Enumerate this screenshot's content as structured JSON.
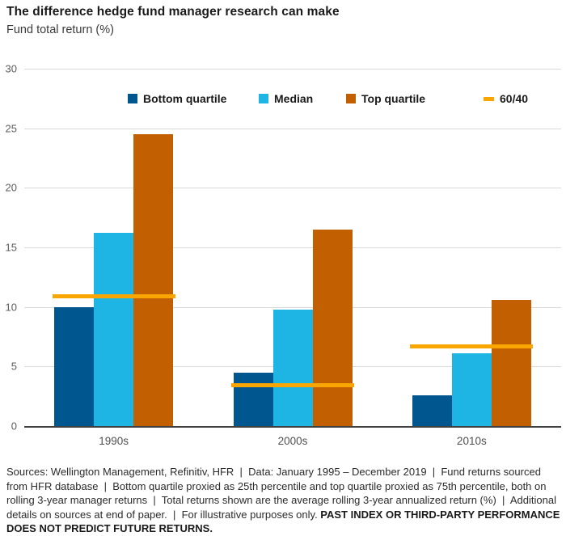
{
  "header": {
    "title": "The difference hedge fund manager research can make",
    "subtitle": "Fund total return (%)"
  },
  "chart_data": {
    "type": "bar",
    "categories": [
      "1990s",
      "2000s",
      "2010s"
    ],
    "series": [
      {
        "name": "Bottom quartile",
        "color": "#00568F",
        "values": [
          10.0,
          4.5,
          2.6
        ]
      },
      {
        "name": "Median",
        "color": "#1EB4E4",
        "values": [
          16.2,
          9.8,
          6.1
        ]
      },
      {
        "name": "Top quartile",
        "color": "#C25F00",
        "values": [
          24.5,
          16.5,
          10.6
        ]
      }
    ],
    "benchmark": {
      "name": "60/40",
      "color": "#F9A602",
      "values": [
        10.9,
        3.4,
        6.7
      ]
    },
    "title": "The difference hedge fund manager research can make",
    "ylabel": "Fund total return (%)",
    "xlabel": "",
    "ylim": [
      0,
      30
    ],
    "yticks": [
      0,
      5,
      10,
      15,
      20,
      25,
      30
    ],
    "grid": true,
    "legend_position": "top-inside",
    "gridline_color": "#d9d9d9",
    "axis_color": "#404040"
  },
  "footer": {
    "text": "Sources: Wellington Management, Refinitiv, HFR  |  Data: January 1995 – December 2019  |  Fund returns sourced from HFR database  |  Bottom quartile proxied as 25th percentile and top quartile proxied as 75th percentile, both on rolling 3-year manager returns  |  Total returns shown are the average rolling 3-year annualized return (%)  |  Additional details on sources at end of paper.  |  For illustrative purposes only. ",
    "bold_text": "PAST INDEX OR THIRD-PARTY PERFORMANCE DOES NOT PREDICT FUTURE RETURNS."
  }
}
